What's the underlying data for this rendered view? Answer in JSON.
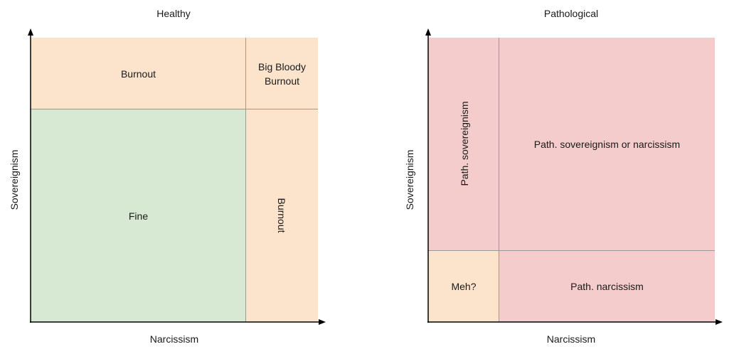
{
  "healthy": {
    "title": "Healthy",
    "x_label": "Narcissism",
    "y_label": "Sovereignism",
    "regions": {
      "top_left": "Burnout",
      "top_right_line1": "Big Bloody",
      "top_right_line2": "Burnout",
      "bottom_left": "Fine",
      "bottom_right": "Burnout"
    }
  },
  "pathological": {
    "title": "Pathological",
    "x_label": "Narcissism",
    "y_label": "Sovereignism",
    "regions": {
      "top_left": "Path. sovereignism",
      "top_right": "Path. sovereignism or narcissism",
      "bottom_left": "Meh?",
      "bottom_right": "Path. narcissism"
    }
  },
  "colors": {
    "burnout": "#fce4cc",
    "fine": "#d8e9d3",
    "pathological": "#f4cccc",
    "axis": "#000000"
  }
}
